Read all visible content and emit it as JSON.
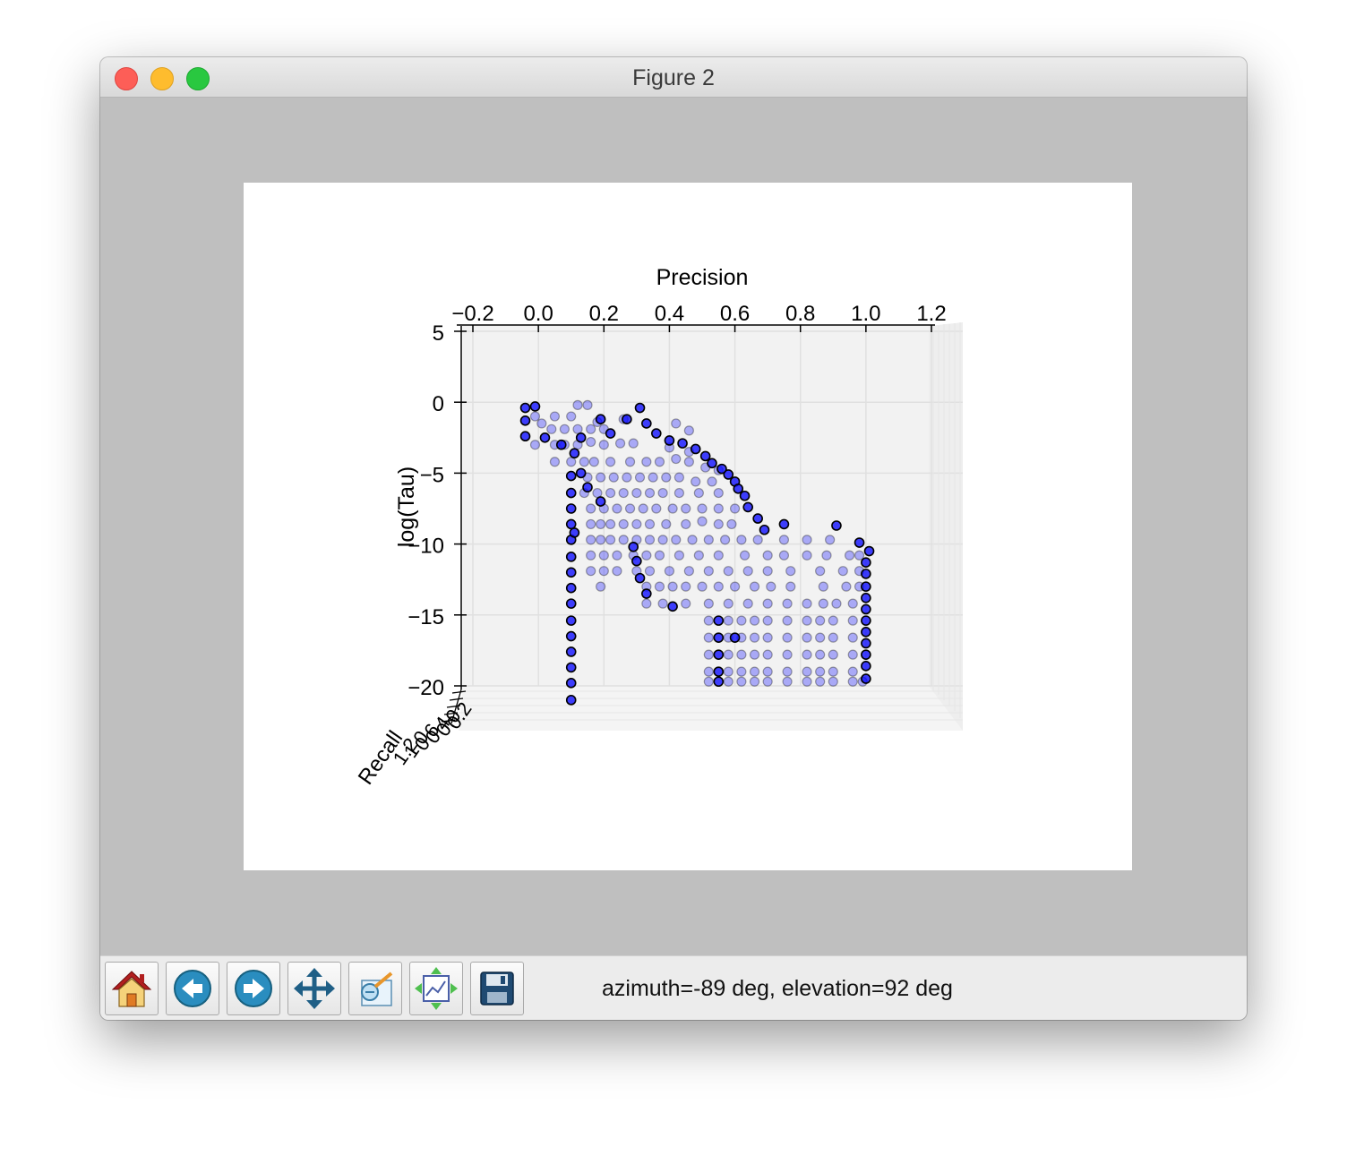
{
  "window": {
    "title": "Figure 2"
  },
  "toolbar": {
    "buttons": [
      {
        "name": "home-button",
        "icon": "home-icon"
      },
      {
        "name": "back-button",
        "icon": "arrow-left-icon"
      },
      {
        "name": "forward-button",
        "icon": "arrow-right-icon"
      },
      {
        "name": "pan-button",
        "icon": "move-icon"
      },
      {
        "name": "zoom-button",
        "icon": "zoom-rect-icon"
      },
      {
        "name": "subplots-button",
        "icon": "subplots-icon"
      },
      {
        "name": "save-button",
        "icon": "save-icon"
      }
    ],
    "status": "azimuth=-89 deg, elevation=92 deg"
  },
  "colors": {
    "marker": "#0000ff",
    "marker_edge": "#000000",
    "pane": "#f2f2f2",
    "grid": "#e0e0e0"
  },
  "chart_data": {
    "type": "scatter",
    "projection": "3d",
    "xlabel": "Precision",
    "ylabel": "log(Tau)",
    "zlabel": "Recall",
    "xlim": [
      -0.2,
      1.2
    ],
    "ylim": [
      -20,
      5
    ],
    "xticks": [
      "−0.2",
      "0.0",
      "0.2",
      "0.4",
      "0.6",
      "0.8",
      "1.0",
      "1.2"
    ],
    "yticks": [
      "5",
      "0",
      "−5",
      "−10",
      "−15",
      "−20"
    ],
    "grid": true,
    "view": {
      "azimuth": -89,
      "elevation": 92
    },
    "series": [
      {
        "opacity": "dark",
        "points": [
          [
            -0.04,
            -0.4
          ],
          [
            -0.04,
            -1.3
          ],
          [
            -0.04,
            -2.4
          ],
          [
            -0.01,
            -0.3
          ],
          [
            0.11,
            -3.6
          ],
          [
            0.1,
            -5.2
          ],
          [
            0.1,
            -6.4
          ],
          [
            0.1,
            -7.5
          ],
          [
            0.1,
            -8.6
          ],
          [
            0.1,
            -9.7
          ],
          [
            0.1,
            -10.9
          ],
          [
            0.1,
            -12.0
          ],
          [
            0.1,
            -13.1
          ],
          [
            0.1,
            -14.2
          ],
          [
            0.1,
            -15.4
          ],
          [
            0.1,
            -16.5
          ],
          [
            0.1,
            -17.6
          ],
          [
            0.1,
            -18.7
          ],
          [
            0.1,
            -19.8
          ],
          [
            0.1,
            -21.0
          ],
          [
            0.19,
            -1.2
          ],
          [
            0.27,
            -1.2
          ],
          [
            0.31,
            -0.4
          ],
          [
            0.13,
            -2.5
          ],
          [
            0.22,
            -2.2
          ],
          [
            0.33,
            -1.5
          ],
          [
            0.36,
            -2.2
          ],
          [
            0.4,
            -2.7
          ],
          [
            0.44,
            -2.9
          ],
          [
            0.48,
            -3.3
          ],
          [
            0.51,
            -3.8
          ],
          [
            0.53,
            -4.3
          ],
          [
            0.56,
            -4.7
          ],
          [
            0.58,
            -5.1
          ],
          [
            0.6,
            -5.6
          ],
          [
            0.61,
            -6.1
          ],
          [
            0.63,
            -6.6
          ],
          [
            0.64,
            -7.4
          ],
          [
            0.67,
            -8.2
          ],
          [
            0.69,
            -9.0
          ],
          [
            0.75,
            -8.6
          ],
          [
            0.91,
            -8.7
          ],
          [
            0.98,
            -9.9
          ],
          [
            1.01,
            -10.5
          ],
          [
            1.0,
            -11.3
          ],
          [
            1.0,
            -12.1
          ],
          [
            1.0,
            -13.0
          ],
          [
            1.0,
            -13.8
          ],
          [
            1.0,
            -14.6
          ],
          [
            1.0,
            -15.4
          ],
          [
            1.0,
            -16.2
          ],
          [
            1.0,
            -17.0
          ],
          [
            1.0,
            -17.8
          ],
          [
            1.0,
            -18.6
          ],
          [
            1.0,
            -19.5
          ],
          [
            0.55,
            -15.4
          ],
          [
            0.55,
            -16.6
          ],
          [
            0.55,
            -17.8
          ],
          [
            0.55,
            -19.0
          ],
          [
            0.55,
            -19.7
          ],
          [
            0.13,
            -5.0
          ],
          [
            0.15,
            -6.0
          ],
          [
            0.19,
            -7.0
          ],
          [
            0.29,
            -10.2
          ],
          [
            0.3,
            -11.2
          ],
          [
            0.31,
            -12.4
          ],
          [
            0.33,
            -13.5
          ],
          [
            0.41,
            -14.4
          ],
          [
            0.6,
            -16.6
          ],
          [
            0.07,
            -3.0
          ],
          [
            0.02,
            -2.5
          ],
          [
            0.11,
            -9.2
          ]
        ]
      },
      {
        "opacity": "light",
        "points": [
          [
            0.12,
            -0.2
          ],
          [
            0.15,
            -0.2
          ],
          [
            0.26,
            -1.2
          ],
          [
            -0.01,
            -1.0
          ],
          [
            0.05,
            -1.0
          ],
          [
            0.1,
            -1.0
          ],
          [
            0.18,
            -1.4
          ],
          [
            0.01,
            -1.5
          ],
          [
            0.04,
            -1.9
          ],
          [
            0.08,
            -1.9
          ],
          [
            0.12,
            -1.9
          ],
          [
            0.16,
            -1.9
          ],
          [
            0.2,
            -1.9
          ],
          [
            -0.01,
            -3.0
          ],
          [
            0.05,
            -3.0
          ],
          [
            0.08,
            -3.0
          ],
          [
            0.12,
            -3.0
          ],
          [
            0.16,
            -2.8
          ],
          [
            0.2,
            -3.0
          ],
          [
            0.25,
            -2.9
          ],
          [
            0.29,
            -2.9
          ],
          [
            0.42,
            -1.5
          ],
          [
            0.46,
            -2.0
          ],
          [
            0.4,
            -3.2
          ],
          [
            0.46,
            -3.5
          ],
          [
            0.55,
            -4.8
          ],
          [
            0.05,
            -4.2
          ],
          [
            0.1,
            -4.2
          ],
          [
            0.14,
            -4.2
          ],
          [
            0.17,
            -4.2
          ],
          [
            0.22,
            -4.2
          ],
          [
            0.28,
            -4.2
          ],
          [
            0.33,
            -4.2
          ],
          [
            0.37,
            -4.2
          ],
          [
            0.42,
            -4.0
          ],
          [
            0.46,
            -4.2
          ],
          [
            0.51,
            -4.6
          ],
          [
            0.15,
            -5.3
          ],
          [
            0.19,
            -5.3
          ],
          [
            0.23,
            -5.3
          ],
          [
            0.27,
            -5.3
          ],
          [
            0.31,
            -5.3
          ],
          [
            0.35,
            -5.3
          ],
          [
            0.39,
            -5.3
          ],
          [
            0.43,
            -5.3
          ],
          [
            0.48,
            -5.6
          ],
          [
            0.53,
            -5.6
          ],
          [
            0.14,
            -6.4
          ],
          [
            0.18,
            -6.4
          ],
          [
            0.22,
            -6.4
          ],
          [
            0.26,
            -6.4
          ],
          [
            0.3,
            -6.4
          ],
          [
            0.34,
            -6.4
          ],
          [
            0.38,
            -6.4
          ],
          [
            0.43,
            -6.4
          ],
          [
            0.49,
            -6.4
          ],
          [
            0.55,
            -6.4
          ],
          [
            0.16,
            -7.5
          ],
          [
            0.2,
            -7.5
          ],
          [
            0.24,
            -7.5
          ],
          [
            0.28,
            -7.5
          ],
          [
            0.32,
            -7.5
          ],
          [
            0.36,
            -7.5
          ],
          [
            0.41,
            -7.5
          ],
          [
            0.45,
            -7.5
          ],
          [
            0.5,
            -7.5
          ],
          [
            0.55,
            -7.5
          ],
          [
            0.6,
            -7.5
          ],
          [
            0.16,
            -8.6
          ],
          [
            0.19,
            -8.6
          ],
          [
            0.22,
            -8.6
          ],
          [
            0.26,
            -8.6
          ],
          [
            0.3,
            -8.6
          ],
          [
            0.34,
            -8.6
          ],
          [
            0.39,
            -8.6
          ],
          [
            0.45,
            -8.6
          ],
          [
            0.5,
            -8.4
          ],
          [
            0.55,
            -8.6
          ],
          [
            0.59,
            -8.6
          ],
          [
            0.16,
            -9.7
          ],
          [
            0.19,
            -9.7
          ],
          [
            0.22,
            -9.7
          ],
          [
            0.26,
            -9.7
          ],
          [
            0.3,
            -9.7
          ],
          [
            0.34,
            -9.7
          ],
          [
            0.38,
            -9.7
          ],
          [
            0.42,
            -9.7
          ],
          [
            0.47,
            -9.7
          ],
          [
            0.52,
            -9.7
          ],
          [
            0.57,
            -9.7
          ],
          [
            0.62,
            -9.7
          ],
          [
            0.67,
            -9.7
          ],
          [
            0.75,
            -9.7
          ],
          [
            0.82,
            -9.7
          ],
          [
            0.89,
            -9.7
          ],
          [
            0.16,
            -10.8
          ],
          [
            0.2,
            -10.8
          ],
          [
            0.24,
            -10.8
          ],
          [
            0.29,
            -10.8
          ],
          [
            0.33,
            -10.8
          ],
          [
            0.37,
            -10.8
          ],
          [
            0.43,
            -10.8
          ],
          [
            0.49,
            -10.8
          ],
          [
            0.55,
            -10.8
          ],
          [
            0.63,
            -10.8
          ],
          [
            0.7,
            -10.8
          ],
          [
            0.75,
            -10.8
          ],
          [
            0.82,
            -10.8
          ],
          [
            0.88,
            -10.8
          ],
          [
            0.95,
            -10.8
          ],
          [
            0.98,
            -10.8
          ],
          [
            0.16,
            -11.9
          ],
          [
            0.2,
            -11.9
          ],
          [
            0.24,
            -11.9
          ],
          [
            0.3,
            -11.9
          ],
          [
            0.34,
            -11.9
          ],
          [
            0.4,
            -11.9
          ],
          [
            0.46,
            -11.9
          ],
          [
            0.52,
            -11.9
          ],
          [
            0.58,
            -11.9
          ],
          [
            0.64,
            -11.9
          ],
          [
            0.7,
            -11.9
          ],
          [
            0.77,
            -11.9
          ],
          [
            0.86,
            -11.9
          ],
          [
            0.93,
            -11.9
          ],
          [
            0.98,
            -11.9
          ],
          [
            0.19,
            -13.0
          ],
          [
            0.33,
            -13.0
          ],
          [
            0.37,
            -13.0
          ],
          [
            0.41,
            -13.0
          ],
          [
            0.45,
            -13.0
          ],
          [
            0.5,
            -13.0
          ],
          [
            0.55,
            -13.0
          ],
          [
            0.6,
            -13.0
          ],
          [
            0.66,
            -13.0
          ],
          [
            0.71,
            -13.0
          ],
          [
            0.77,
            -13.0
          ],
          [
            0.87,
            -13.0
          ],
          [
            0.94,
            -13.0
          ],
          [
            0.98,
            -13.0
          ],
          [
            0.33,
            -14.2
          ],
          [
            0.38,
            -14.2
          ],
          [
            0.45,
            -14.2
          ],
          [
            0.52,
            -14.2
          ],
          [
            0.58,
            -14.2
          ],
          [
            0.64,
            -14.2
          ],
          [
            0.7,
            -14.2
          ],
          [
            0.76,
            -14.2
          ],
          [
            0.82,
            -14.2
          ],
          [
            0.87,
            -14.2
          ],
          [
            0.91,
            -14.2
          ],
          [
            0.96,
            -14.2
          ],
          [
            0.52,
            -15.4
          ],
          [
            0.58,
            -15.4
          ],
          [
            0.62,
            -15.4
          ],
          [
            0.66,
            -15.4
          ],
          [
            0.7,
            -15.4
          ],
          [
            0.76,
            -15.4
          ],
          [
            0.82,
            -15.4
          ],
          [
            0.86,
            -15.4
          ],
          [
            0.9,
            -15.4
          ],
          [
            0.96,
            -15.4
          ],
          [
            0.52,
            -16.6
          ],
          [
            0.58,
            -16.6
          ],
          [
            0.62,
            -16.6
          ],
          [
            0.66,
            -16.6
          ],
          [
            0.7,
            -16.6
          ],
          [
            0.76,
            -16.6
          ],
          [
            0.82,
            -16.6
          ],
          [
            0.86,
            -16.6
          ],
          [
            0.9,
            -16.6
          ],
          [
            0.96,
            -16.6
          ],
          [
            0.52,
            -17.8
          ],
          [
            0.58,
            -17.8
          ],
          [
            0.62,
            -17.8
          ],
          [
            0.66,
            -17.8
          ],
          [
            0.7,
            -17.8
          ],
          [
            0.76,
            -17.8
          ],
          [
            0.82,
            -17.8
          ],
          [
            0.86,
            -17.8
          ],
          [
            0.9,
            -17.8
          ],
          [
            0.96,
            -17.8
          ],
          [
            0.52,
            -19.0
          ],
          [
            0.58,
            -19.0
          ],
          [
            0.62,
            -19.0
          ],
          [
            0.66,
            -19.0
          ],
          [
            0.7,
            -19.0
          ],
          [
            0.76,
            -19.0
          ],
          [
            0.82,
            -19.0
          ],
          [
            0.86,
            -19.0
          ],
          [
            0.9,
            -19.0
          ],
          [
            0.96,
            -19.0
          ],
          [
            0.52,
            -19.7
          ],
          [
            0.58,
            -19.7
          ],
          [
            0.62,
            -19.7
          ],
          [
            0.66,
            -19.7
          ],
          [
            0.7,
            -19.7
          ],
          [
            0.76,
            -19.7
          ],
          [
            0.82,
            -19.7
          ],
          [
            0.86,
            -19.7
          ],
          [
            0.9,
            -19.7
          ],
          [
            0.96,
            -19.7
          ],
          [
            0.99,
            -19.7
          ]
        ]
      }
    ]
  }
}
